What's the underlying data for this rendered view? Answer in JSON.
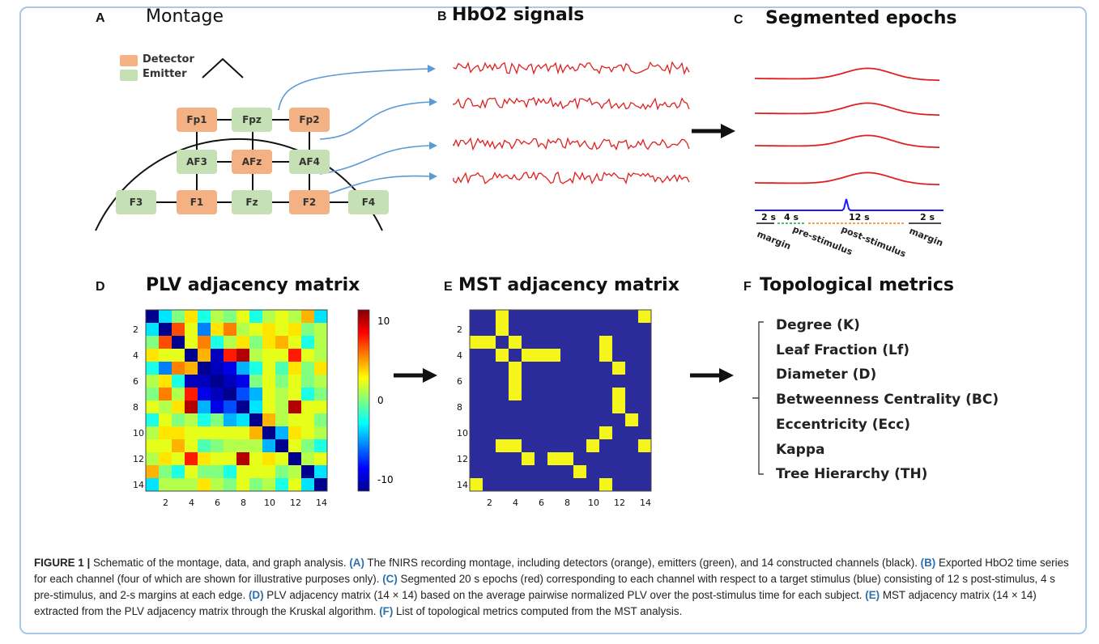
{
  "panels": {
    "a": {
      "letter": "A",
      "title": "Montage"
    },
    "b": {
      "letter": "B",
      "title": "HbO2 signals"
    },
    "c": {
      "letter": "C",
      "title": "Segmented epochs"
    },
    "d": {
      "letter": "D",
      "title": "PLV adjacency matrix"
    },
    "e": {
      "letter": "E",
      "title": "MST adjacency matrix"
    },
    "f": {
      "letter": "F",
      "title": "Topological metrics"
    }
  },
  "legend": {
    "detector": "Detector",
    "emitter": "Emitter",
    "detector_color": "#f4b183",
    "emitter_color": "#c5e0b4"
  },
  "nodes": {
    "Fp1": "Fp1",
    "Fpz": "Fpz",
    "Fp2": "Fp2",
    "AF3": "AF3",
    "AFz": "AFz",
    "AF4": "AF4",
    "F3": "F3",
    "F1": "F1",
    "Fz": "Fz",
    "F2": "F2",
    "F4": "F4"
  },
  "epochs": {
    "segments": [
      "2 s",
      "4 s",
      "12 s",
      "2 s"
    ],
    "labels": [
      "margin",
      "pre-stimulus",
      "post-stimulus",
      "margin"
    ],
    "signal_color": "#e02020",
    "stimulus_color": "#1a1aff"
  },
  "colorbar": {
    "ticks": [
      "10",
      "0",
      "-10"
    ]
  },
  "metrics": [
    "Degree (K)",
    "Leaf Fraction (Lf)",
    "Diameter (D)",
    "Betweenness Centrality (BC)",
    "Eccentricity (Ecc)",
    "Kappa",
    "Tree Hierarchy (TH)"
  ],
  "chart_data": [
    {
      "type": "heatmap",
      "title": "PLV adjacency matrix",
      "size": 14,
      "x_ticks": [
        "2",
        "4",
        "6",
        "8",
        "10",
        "12",
        "14"
      ],
      "y_ticks": [
        "2",
        "4",
        "6",
        "8",
        "10",
        "12",
        "14"
      ],
      "colorbar_range": [
        -10,
        10
      ],
      "values": [
        [
          -10,
          -3,
          0,
          3,
          -2,
          1,
          0,
          2,
          -2,
          1,
          2,
          1,
          4,
          -3
        ],
        [
          -3,
          -10,
          6,
          2,
          -5,
          3,
          5,
          1,
          2,
          3,
          2,
          3,
          0,
          1
        ],
        [
          0,
          6,
          -10,
          2,
          5,
          -2,
          1,
          3,
          0,
          3,
          4,
          2,
          -2,
          1
        ],
        [
          3,
          2,
          2,
          -10,
          4,
          -9,
          7,
          9,
          1,
          2,
          2,
          7,
          2,
          1
        ],
        [
          -2,
          -5,
          5,
          4,
          -10,
          -9,
          -8,
          -4,
          -2,
          2,
          -1,
          3,
          0,
          3
        ],
        [
          1,
          3,
          -2,
          -9,
          -9,
          -10,
          -9,
          -8,
          0,
          2,
          0,
          2,
          0,
          1
        ],
        [
          0,
          5,
          1,
          7,
          -8,
          -9,
          -10,
          -6,
          -4,
          2,
          1,
          2,
          -2,
          0
        ],
        [
          2,
          1,
          3,
          9,
          -4,
          -8,
          -6,
          -10,
          -3,
          2,
          1,
          9,
          2,
          2
        ],
        [
          -2,
          2,
          0,
          1,
          -2,
          0,
          -4,
          -3,
          -10,
          4,
          1,
          2,
          2,
          0
        ],
        [
          1,
          3,
          3,
          2,
          2,
          2,
          2,
          2,
          4,
          -10,
          -4,
          3,
          2,
          1
        ],
        [
          2,
          2,
          4,
          2,
          -1,
          0,
          1,
          1,
          1,
          -4,
          -10,
          2,
          0,
          -2
        ],
        [
          1,
          3,
          2,
          7,
          3,
          2,
          2,
          9,
          2,
          3,
          2,
          -10,
          1,
          2
        ],
        [
          4,
          0,
          -2,
          2,
          0,
          0,
          -2,
          2,
          2,
          2,
          0,
          1,
          -10,
          -3
        ],
        [
          -3,
          1,
          1,
          1,
          3,
          1,
          0,
          2,
          0,
          1,
          -2,
          2,
          -3,
          -10
        ]
      ]
    },
    {
      "type": "heatmap",
      "title": "MST adjacency matrix",
      "size": 14,
      "x_ticks": [
        "2",
        "4",
        "6",
        "8",
        "10",
        "12",
        "14"
      ],
      "y_ticks": [
        "2",
        "4",
        "6",
        "8",
        "10",
        "12",
        "14"
      ],
      "edges": [
        [
          1,
          3
        ],
        [
          2,
          3
        ],
        [
          3,
          4
        ],
        [
          3,
          11
        ],
        [
          4,
          5
        ],
        [
          4,
          6
        ],
        [
          4,
          7
        ],
        [
          4,
          11
        ],
        [
          5,
          12
        ],
        [
          7,
          12
        ],
        [
          8,
          12
        ],
        [
          9,
          13
        ],
        [
          10,
          11
        ],
        [
          11,
          14
        ],
        [
          14,
          1
        ]
      ],
      "colors": {
        "empty": "#2b2b9c",
        "edge": "#f5f51c"
      }
    }
  ],
  "caption": {
    "figure_label": "FIGURE 1 |",
    "intro": " Schematic of the montage, data, and graph analysis. ",
    "a_tag": "(A)",
    "a_text": " The fNIRS recording montage, including detectors (orange), emitters (green), and 14 constructed channels (black). ",
    "b_tag": "(B)",
    "b_text": " Exported HbO2 time series for each channel (four of which are shown for illustrative purposes only). ",
    "c_tag": "(C)",
    "c_text": " Segmented 20 s epochs (red) corresponding to each channel with respect to a target stimulus (blue) consisting of 12 s post-stimulus, 4 s pre-stimulus, and 2-s margins at each edge. ",
    "d_tag": "(D)",
    "d_text": " PLV adjacency matrix (14 × 14) based on the average pairwise normalized PLV over the post-stimulus time for each subject. ",
    "e_tag": "(E)",
    "e_text": " MST adjacency matrix (14 × 14) extracted from the PLV adjacency matrix through the Kruskal algorithm. ",
    "f_tag": "(F)",
    "f_text": " List of topological metrics computed from the MST analysis."
  }
}
